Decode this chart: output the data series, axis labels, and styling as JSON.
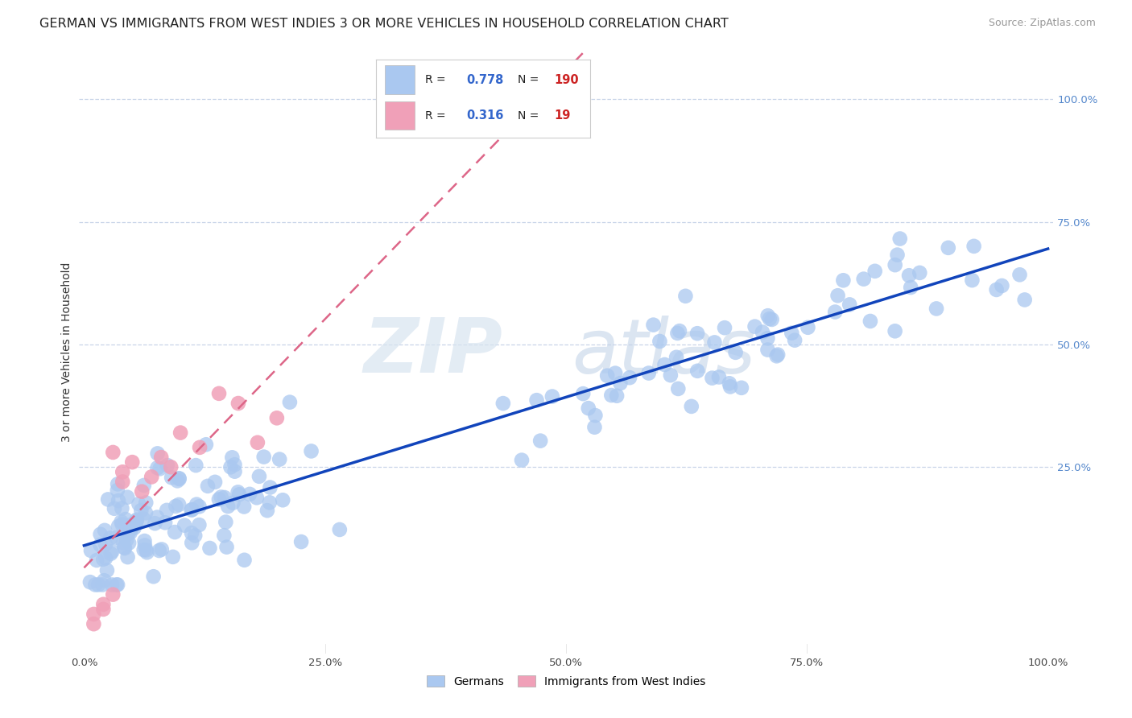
{
  "title": "GERMAN VS IMMIGRANTS FROM WEST INDIES 3 OR MORE VEHICLES IN HOUSEHOLD CORRELATION CHART",
  "source": "Source: ZipAtlas.com",
  "ylabel": "3 or more Vehicles in Household",
  "x_tick_labels": [
    "0.0%",
    "25.0%",
    "50.0%",
    "75.0%",
    "100.0%"
  ],
  "y_tick_labels_right": [
    "100.0%",
    "75.0%",
    "50.0%",
    "25.0%"
  ],
  "legend_german": "Germans",
  "legend_wi": "Immigrants from West Indies",
  "r_german": 0.778,
  "n_german": 190,
  "r_wi": 0.316,
  "n_wi": 19,
  "german_color": "#aac8f0",
  "wi_color": "#f0a0b8",
  "trend_german_color": "#1144bb",
  "trend_wi_color": "#dd6688",
  "watermark_zip": "ZIP",
  "watermark_atlas": "atlas",
  "background_color": "#ffffff",
  "grid_color": "#c8d4e8",
  "title_fontsize": 11.5,
  "axis_label_fontsize": 10,
  "tick_fontsize": 9.5,
  "source_fontsize": 9,
  "seed": 99
}
